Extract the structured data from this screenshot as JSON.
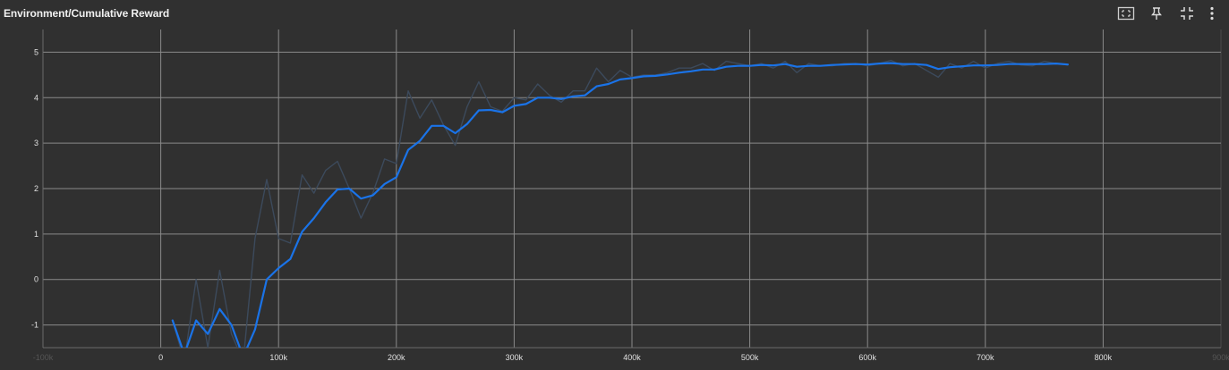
{
  "card": {
    "title": "Environment/Cumulative Reward"
  },
  "toolbar": {
    "icons": [
      "fit-domain-icon",
      "pin-icon",
      "exit-fullscreen-icon",
      "more-vert-icon"
    ]
  },
  "colors": {
    "background": "#303030",
    "grid": "#8a8a8a",
    "smoothed_line": "#1a73e8",
    "raw_line": "#3c4a5c",
    "text": "#e0e0e0"
  },
  "chart_data": {
    "type": "line",
    "title": "Environment/Cumulative Reward",
    "xlim": [
      -100000,
      900000
    ],
    "ylim": [
      -1.5,
      5.5
    ],
    "x_ticks": [
      -100000,
      0,
      100000,
      200000,
      300000,
      400000,
      500000,
      600000,
      700000,
      800000,
      900000
    ],
    "x_tick_labels": [
      "-100k",
      "0",
      "100k",
      "200k",
      "300k",
      "400k",
      "500k",
      "600k",
      "700k",
      "800k",
      "900k"
    ],
    "y_ticks": [
      -1,
      0,
      1,
      2,
      3,
      4,
      5
    ],
    "y_tick_labels": [
      "-1",
      "0",
      "1",
      "2",
      "3",
      "4",
      "5"
    ],
    "grid": true,
    "series": [
      {
        "role": "raw",
        "color": "#3c4a5c",
        "x": [
          10000,
          20000,
          30000,
          40000,
          50000,
          60000,
          70000,
          80000,
          90000,
          100000,
          110000,
          120000,
          130000,
          140000,
          150000,
          160000,
          170000,
          180000,
          190000,
          200000,
          210000,
          220000,
          230000,
          240000,
          250000,
          260000,
          270000,
          280000,
          290000,
          300000,
          310000,
          320000,
          330000,
          340000,
          350000,
          360000,
          370000,
          380000,
          390000,
          400000,
          410000,
          420000,
          430000,
          440000,
          450000,
          460000,
          470000,
          480000,
          490000,
          500000,
          510000,
          520000,
          530000,
          540000,
          550000,
          560000,
          570000,
          580000,
          590000,
          600000,
          610000,
          620000,
          630000,
          640000,
          650000,
          660000,
          670000,
          680000,
          690000,
          700000,
          710000,
          720000,
          730000,
          740000,
          750000,
          760000,
          770000
        ],
        "y": [
          -0.9,
          -1.8,
          0.0,
          -1.5,
          0.2,
          -1.2,
          -1.8,
          0.9,
          2.2,
          0.9,
          0.8,
          2.3,
          1.9,
          2.4,
          2.6,
          2.0,
          1.35,
          1.9,
          2.65,
          2.55,
          4.15,
          3.55,
          3.95,
          3.4,
          2.95,
          3.8,
          4.35,
          3.8,
          3.7,
          4.0,
          3.95,
          4.3,
          4.05,
          3.9,
          4.15,
          4.15,
          4.65,
          4.35,
          4.6,
          4.45,
          4.5,
          4.5,
          4.55,
          4.65,
          4.65,
          4.75,
          4.6,
          4.8,
          4.75,
          4.7,
          4.75,
          4.65,
          4.8,
          4.55,
          4.75,
          4.7,
          4.7,
          4.75,
          4.75,
          4.7,
          4.75,
          4.82,
          4.7,
          4.75,
          4.6,
          4.45,
          4.75,
          4.65,
          4.8,
          4.65,
          4.75,
          4.8,
          4.72,
          4.7,
          4.8,
          4.75,
          4.72
        ]
      },
      {
        "role": "smoothed",
        "color": "#1a73e8",
        "x": [
          10000,
          20000,
          30000,
          40000,
          50000,
          60000,
          70000,
          80000,
          90000,
          100000,
          110000,
          120000,
          130000,
          140000,
          150000,
          160000,
          170000,
          180000,
          190000,
          200000,
          210000,
          220000,
          230000,
          240000,
          250000,
          260000,
          270000,
          280000,
          290000,
          300000,
          310000,
          320000,
          330000,
          340000,
          350000,
          360000,
          370000,
          380000,
          390000,
          400000,
          410000,
          420000,
          430000,
          440000,
          450000,
          460000,
          470000,
          480000,
          490000,
          500000,
          510000,
          520000,
          530000,
          540000,
          550000,
          560000,
          570000,
          580000,
          590000,
          600000,
          610000,
          620000,
          630000,
          640000,
          650000,
          660000,
          670000,
          680000,
          690000,
          700000,
          710000,
          720000,
          730000,
          740000,
          750000,
          760000,
          770000
        ],
        "y": [
          -0.9,
          -1.65,
          -0.9,
          -1.2,
          -0.65,
          -1.0,
          -1.7,
          -1.1,
          0.0,
          0.25,
          0.45,
          1.05,
          1.35,
          1.7,
          1.98,
          2.0,
          1.78,
          1.85,
          2.1,
          2.25,
          2.85,
          3.05,
          3.38,
          3.38,
          3.22,
          3.42,
          3.72,
          3.73,
          3.68,
          3.82,
          3.86,
          4.0,
          4.0,
          3.97,
          4.03,
          4.05,
          4.25,
          4.3,
          4.4,
          4.43,
          4.47,
          4.48,
          4.51,
          4.55,
          4.58,
          4.62,
          4.62,
          4.68,
          4.7,
          4.7,
          4.72,
          4.71,
          4.74,
          4.68,
          4.7,
          4.7,
          4.72,
          4.73,
          4.74,
          4.73,
          4.75,
          4.76,
          4.74,
          4.74,
          4.72,
          4.63,
          4.67,
          4.69,
          4.71,
          4.71,
          4.72,
          4.74,
          4.74,
          4.74,
          4.74,
          4.75,
          4.73
        ]
      }
    ]
  }
}
